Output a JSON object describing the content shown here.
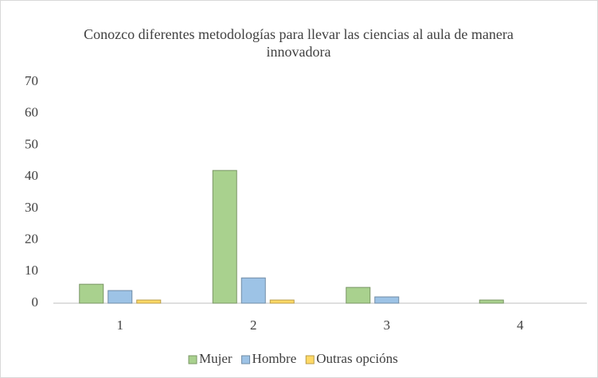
{
  "chart_data": {
    "type": "bar",
    "title": "Conozco diferentes metodologías para llevar las ciencias al aula de manera innovadora",
    "categories": [
      "1",
      "2",
      "3",
      "4"
    ],
    "series": [
      {
        "name": "Mujer",
        "color": "#a9d18e",
        "values": [
          6,
          42,
          5,
          1
        ]
      },
      {
        "name": "Hombre",
        "color": "#9dc3e6",
        "values": [
          4,
          8,
          2,
          0
        ]
      },
      {
        "name": "Outras opcións",
        "color": "#ffd966",
        "values": [
          1,
          1,
          0,
          0
        ]
      }
    ],
    "ylim": [
      0,
      70
    ],
    "yticks": [
      0,
      10,
      20,
      30,
      40,
      50,
      60,
      70
    ],
    "grid": false,
    "legend": "bottom"
  }
}
